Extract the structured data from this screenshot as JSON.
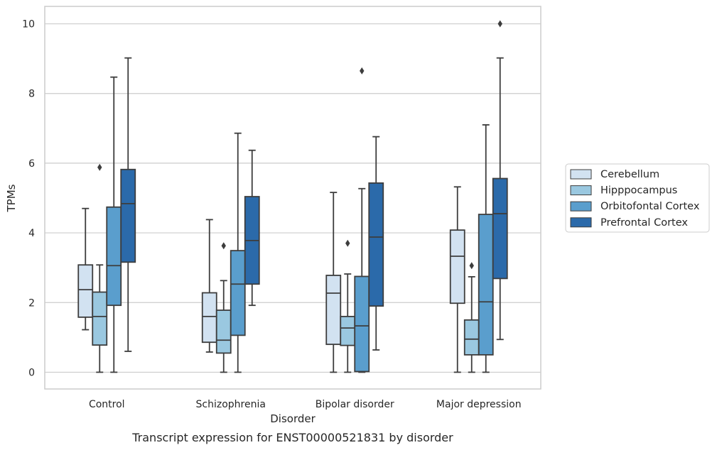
{
  "chart_data": {
    "type": "box",
    "caption": "Transcript expression for ENST00000521831 by disorder",
    "xlabel": "Disorder",
    "ylabel": "TPMs",
    "ylim": [
      -0.48,
      10.5
    ],
    "yticks": [
      0,
      2,
      4,
      6,
      8,
      10
    ],
    "grid": "horizontal",
    "legend_position": "right",
    "categories": [
      "Control",
      "Schizophrenia",
      "Bipolar disorder",
      "Major depression"
    ],
    "series": [
      {
        "name": "Cerebellum",
        "color": "#d2e2f1",
        "boxes": [
          {
            "whisker_low": 1.22,
            "q1": 1.58,
            "median": 2.37,
            "q3": 3.08,
            "whisker_high": 4.7,
            "outliers": []
          },
          {
            "whisker_low": 0.58,
            "q1": 0.86,
            "median": 1.6,
            "q3": 2.28,
            "whisker_high": 4.38,
            "outliers": []
          },
          {
            "whisker_low": 0.0,
            "q1": 0.8,
            "median": 2.27,
            "q3": 2.78,
            "whisker_high": 5.16,
            "outliers": []
          },
          {
            "whisker_low": 0.0,
            "q1": 1.98,
            "median": 3.33,
            "q3": 4.08,
            "whisker_high": 5.32,
            "outliers": []
          }
        ]
      },
      {
        "name": "Hipppocampus",
        "color": "#9ac8e0",
        "boxes": [
          {
            "whisker_low": 0.0,
            "q1": 0.78,
            "median": 1.6,
            "q3": 2.3,
            "whisker_high": 3.08,
            "outliers": [
              5.88
            ]
          },
          {
            "whisker_low": 0.0,
            "q1": 0.55,
            "median": 0.92,
            "q3": 1.78,
            "whisker_high": 2.63,
            "outliers": [
              3.63
            ]
          },
          {
            "whisker_low": 0.0,
            "q1": 0.77,
            "median": 1.27,
            "q3": 1.6,
            "whisker_high": 2.82,
            "outliers": [
              3.7
            ]
          },
          {
            "whisker_low": 0.0,
            "q1": 0.5,
            "median": 0.95,
            "q3": 1.5,
            "whisker_high": 2.74,
            "outliers": [
              3.06
            ]
          }
        ]
      },
      {
        "name": "Orbitofontal Cortex",
        "color": "#5a9ecd",
        "boxes": [
          {
            "whisker_low": 0.0,
            "q1": 1.92,
            "median": 3.06,
            "q3": 4.74,
            "whisker_high": 8.47,
            "outliers": []
          },
          {
            "whisker_low": 0.0,
            "q1": 1.06,
            "median": 2.53,
            "q3": 3.49,
            "whisker_high": 6.86,
            "outliers": []
          },
          {
            "whisker_low": 0.0,
            "q1": 0.02,
            "median": 1.33,
            "q3": 2.75,
            "whisker_high": 5.27,
            "outliers": [
              8.65
            ]
          },
          {
            "whisker_low": 0.0,
            "q1": 0.5,
            "median": 2.02,
            "q3": 4.53,
            "whisker_high": 7.1,
            "outliers": []
          }
        ]
      },
      {
        "name": "Prefrontal Cortex",
        "color": "#2b6aaa",
        "boxes": [
          {
            "whisker_low": 0.6,
            "q1": 3.16,
            "median": 4.84,
            "q3": 5.82,
            "whisker_high": 9.02,
            "outliers": []
          },
          {
            "whisker_low": 1.92,
            "q1": 2.53,
            "median": 3.78,
            "q3": 5.04,
            "whisker_high": 6.37,
            "outliers": []
          },
          {
            "whisker_low": 0.64,
            "q1": 1.9,
            "median": 3.88,
            "q3": 5.43,
            "whisker_high": 6.76,
            "outliers": []
          },
          {
            "whisker_low": 0.94,
            "q1": 2.69,
            "median": 4.55,
            "q3": 5.56,
            "whisker_high": 9.02,
            "outliers": [
              10.0
            ]
          }
        ]
      }
    ]
  }
}
